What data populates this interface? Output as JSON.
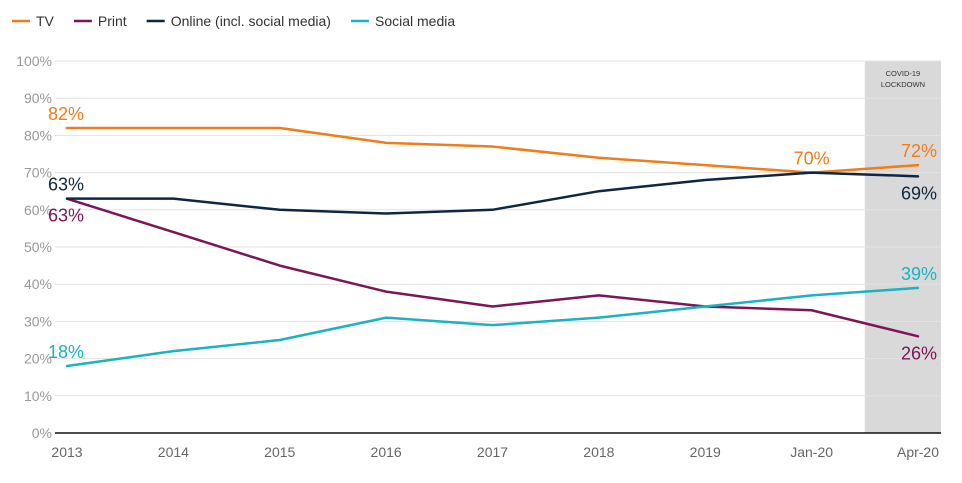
{
  "chart_data": {
    "type": "line",
    "categories": [
      "2013",
      "2014",
      "2015",
      "2016",
      "2017",
      "2018",
      "2019",
      "Jan-20",
      "Apr-20"
    ],
    "ylim": [
      0,
      100
    ],
    "yticks": [
      "0%",
      "10%",
      "20%",
      "30%",
      "40%",
      "50%",
      "60%",
      "70%",
      "80%",
      "90%",
      "100%"
    ],
    "grid": true,
    "legend_position": "top-left",
    "shaded_region": {
      "label_line1": "COVID-19",
      "label_line2": "LOCKDOWN",
      "from_category": "Jan-20",
      "to_category": "Apr-20"
    },
    "series": [
      {
        "name": "TV",
        "color": "#f07d1a",
        "values": [
          82,
          82,
          82,
          78,
          77,
          74,
          72,
          70,
          72
        ],
        "labels": [
          {
            "index": 0,
            "text": "82%",
            "pos": "above"
          },
          {
            "index": 7,
            "text": "70%",
            "pos": "above"
          },
          {
            "index": 8,
            "text": "72%",
            "pos": "above"
          }
        ]
      },
      {
        "name": "Print",
        "color": "#7b1657",
        "values": [
          63,
          54,
          45,
          38,
          34,
          37,
          34,
          33,
          26
        ],
        "labels": [
          {
            "index": 0,
            "text": "63%",
            "pos": "below"
          },
          {
            "index": 8,
            "text": "26%",
            "pos": "below"
          }
        ]
      },
      {
        "name": "Online (incl. social media)",
        "color": "#0f2741",
        "values": [
          63,
          63,
          60,
          59,
          60,
          65,
          68,
          70,
          69
        ],
        "labels": [
          {
            "index": 0,
            "text": "63%",
            "pos": "above"
          },
          {
            "index": 8,
            "text": "69%",
            "pos": "below"
          }
        ]
      },
      {
        "name": "Social media",
        "color": "#1ab3c0",
        "values": [
          18,
          22,
          25,
          31,
          29,
          31,
          34,
          37,
          39
        ],
        "labels": [
          {
            "index": 0,
            "text": "18%",
            "pos": "above"
          },
          {
            "index": 8,
            "text": "39%",
            "pos": "above"
          }
        ]
      }
    ]
  }
}
